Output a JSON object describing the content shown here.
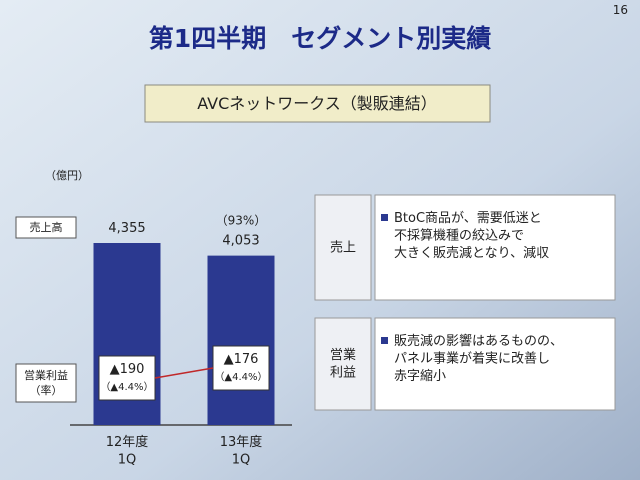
{
  "slide_number": "16",
  "title": "第1四半期　セグメント別実績",
  "subtitle": "AVCネットワークス（製販連結）",
  "unit": "（億円）",
  "row_labels": [
    "売上高",
    "営業利益\n（率）"
  ],
  "chart_data": {
    "type": "bar",
    "categories": [
      "12年度\n1Q",
      "13年度\n1Q"
    ],
    "values": [
      4355,
      4053
    ],
    "value_labels": [
      "4,355",
      "4,053"
    ],
    "yoy_label": "（93%）",
    "color": "#2b3990",
    "profit_labels": [
      [
        "▲190",
        "（▲4.4%）"
      ],
      [
        "▲176",
        "（▲4.4%）"
      ]
    ]
  },
  "notes": [
    {
      "label": "売上",
      "text": "BtoC商品が、需要低迷と\n不採算機種の絞込みで\n大きく販売減となり、減収"
    },
    {
      "label": "営業\n利益",
      "text": "販売減の影響はあるものの、\nパネル事業が着実に改善し\n赤字縮小"
    }
  ]
}
